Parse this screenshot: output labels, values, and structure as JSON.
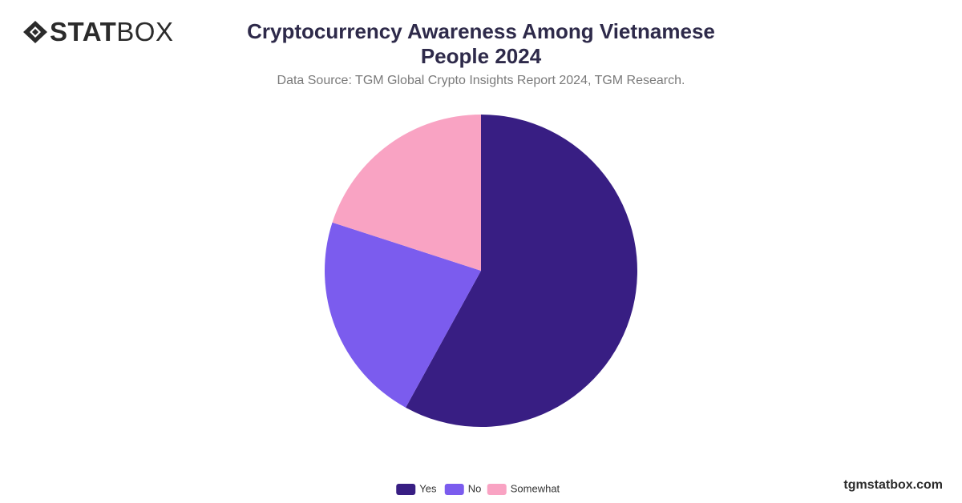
{
  "chart_data": {
    "type": "pie",
    "title": "Cryptocurrency Awareness Among Vietnamese People 2024",
    "subtitle": "Data Source: TGM Global Crypto Insights Report 2024, TGM Research.",
    "categories": [
      "Yes",
      "No",
      "Somewhat"
    ],
    "values": [
      58,
      22,
      20
    ],
    "colors": [
      "#381e83",
      "#7b5cee",
      "#f9a3c3"
    ]
  },
  "brand": {
    "bold": "STAT",
    "light": "BOX"
  },
  "footer": "tgmstatbox.com"
}
